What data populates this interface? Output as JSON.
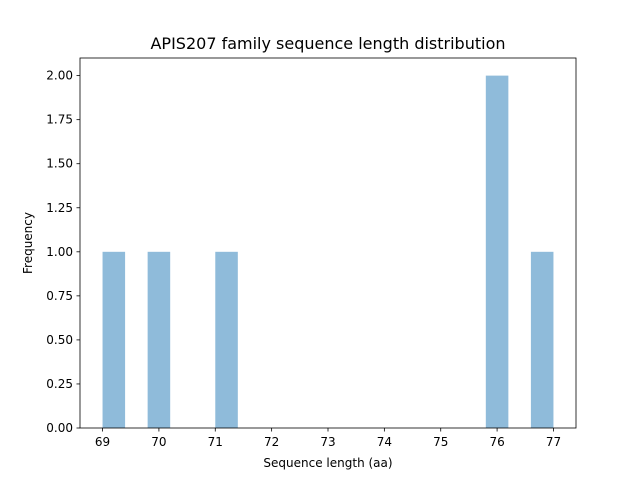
{
  "chart_data": {
    "type": "bar",
    "title": "APIS207 family sequence length distribution",
    "xlabel": "Sequence length (aa)",
    "ylabel": "Frequency",
    "bins": [
      {
        "start": 69.0,
        "end": 69.4,
        "value": 1
      },
      {
        "start": 69.8,
        "end": 70.2,
        "value": 1
      },
      {
        "start": 71.0,
        "end": 71.4,
        "value": 1
      },
      {
        "start": 75.8,
        "end": 76.2,
        "value": 2
      },
      {
        "start": 76.6,
        "end": 77.0,
        "value": 1
      }
    ],
    "xticks": [
      69,
      70,
      71,
      72,
      73,
      74,
      75,
      76,
      77
    ],
    "xtick_labels": [
      "69",
      "70",
      "71",
      "72",
      "73",
      "74",
      "75",
      "76",
      "77"
    ],
    "yticks": [
      0.0,
      0.25,
      0.5,
      0.75,
      1.0,
      1.25,
      1.5,
      1.75,
      2.0
    ],
    "ytick_labels": [
      "0.00",
      "0.25",
      "0.50",
      "0.75",
      "1.00",
      "1.25",
      "1.50",
      "1.75",
      "2.00"
    ],
    "xlim": [
      68.6,
      77.4
    ],
    "ylim": [
      0,
      2.1
    ],
    "grid": false,
    "bar_color": "#8fbbda"
  }
}
